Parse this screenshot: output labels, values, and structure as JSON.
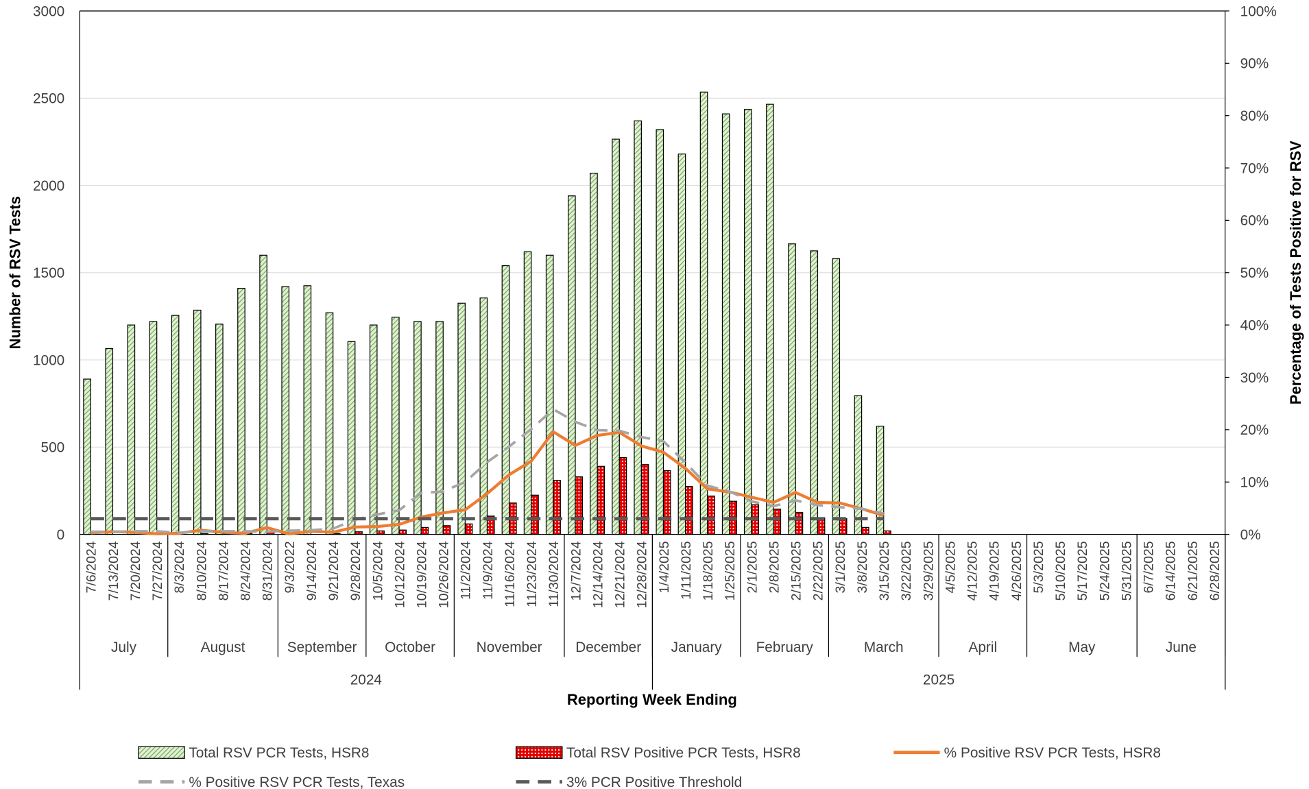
{
  "chart_data": {
    "type": "bar",
    "x_label": "Reporting Week Ending",
    "y_label": "Number of RSV Tests",
    "y2_label": "Percentage of Tests Positive for RSV",
    "categories": [
      "7/6/2024",
      "7/13/2024",
      "7/20/2024",
      "7/27/2024",
      "8/3/2024",
      "8/10/2024",
      "8/17/2024",
      "8/24/2024",
      "8/31/2024",
      "9/3/2022",
      "9/14/2024",
      "9/21/2024",
      "9/28/2024",
      "10/5/2024",
      "10/12/2024",
      "10/19/2024",
      "10/26/2024",
      "11/2/2024",
      "11/9/2024",
      "11/16/2024",
      "11/23/2024",
      "11/30/2024",
      "12/7/2024",
      "12/14/2024",
      "12/21/2024",
      "12/28/2024",
      "1/4/2025",
      "1/11/2025",
      "1/18/2025",
      "1/25/2025",
      "2/1/2025",
      "2/8/2025",
      "2/15/2025",
      "2/22/2025",
      "3/1/2025",
      "3/8/2025",
      "3/15/2025",
      "3/22/2025",
      "3/29/2025",
      "4/5/2025",
      "4/12/2025",
      "4/19/2025",
      "4/26/2025",
      "5/3/2025",
      "5/10/2025",
      "5/17/2025",
      "5/24/2025",
      "5/31/2025",
      "6/7/2025",
      "6/14/2025",
      "6/21/2025",
      "6/28/2025"
    ],
    "months": [
      "July",
      "August",
      "September",
      "October",
      "November",
      "December",
      "January",
      "February",
      "March",
      "April",
      "May",
      "June"
    ],
    "years": [
      "2024",
      "2025"
    ],
    "series": [
      {
        "name": "Total RSV PCR Tests, HSR8",
        "kind": "bar",
        "color": "#70ad47",
        "pattern": "hatch",
        "values": [
          890,
          1065,
          1200,
          1220,
          1255,
          1285,
          1205,
          1410,
          1600,
          1420,
          1425,
          1270,
          1105,
          1200,
          1245,
          1220,
          1220,
          1325,
          1355,
          1540,
          1620,
          1600,
          1940,
          2070,
          2265,
          2370,
          2320,
          2180,
          2535,
          2410,
          2435,
          2465,
          1665,
          1625,
          1580,
          795,
          620,
          null,
          null,
          null,
          null,
          null,
          null,
          null,
          null,
          null,
          null,
          null,
          null,
          null,
          null,
          null
        ]
      },
      {
        "name": "Total RSV Positive PCR Tests, HSR8",
        "kind": "bar",
        "color": "#e00000",
        "pattern": "dots",
        "values": [
          0,
          0,
          0,
          0,
          0,
          5,
          5,
          5,
          20,
          0,
          0,
          5,
          15,
          20,
          25,
          40,
          50,
          60,
          105,
          180,
          225,
          310,
          330,
          390,
          440,
          400,
          365,
          275,
          220,
          190,
          170,
          145,
          125,
          95,
          90,
          40,
          20,
          null,
          null,
          null,
          null,
          null,
          null,
          null,
          null,
          null,
          null,
          null,
          null,
          null,
          null,
          null
        ]
      },
      {
        "name": "% Positive RSV PCR Tests, HSR8",
        "kind": "line",
        "axis": "y2",
        "color": "#ed7d31",
        "line_style": "solid",
        "values": [
          0.3,
          0.5,
          0.4,
          0.1,
          0.2,
          0.8,
          0.4,
          0.2,
          1.3,
          0.1,
          0.6,
          0.4,
          1.4,
          1.5,
          1.9,
          3.3,
          4.1,
          4.7,
          7.8,
          11.4,
          14,
          19.6,
          17,
          18.9,
          19.5,
          16.9,
          15.7,
          12.6,
          8.7,
          8.1,
          7.1,
          6.1,
          8,
          6.1,
          6,
          4.9,
          3.6,
          null,
          null,
          null,
          null,
          null,
          null,
          null,
          null,
          null,
          null,
          null,
          null,
          null,
          null,
          null
        ]
      },
      {
        "name": "% Positive RSV PCR Tests, Texas",
        "kind": "line",
        "axis": "y2",
        "color": "#a5a5a5",
        "line_style": "dashed",
        "values": [
          0.5,
          0.5,
          0.6,
          0.6,
          0.3,
          0.6,
          0.6,
          0.6,
          0.5,
          0.7,
          0.8,
          1.1,
          2.8,
          3.8,
          4.6,
          7.9,
          8.2,
          10,
          13.8,
          16.8,
          20.1,
          23.9,
          21.5,
          19.9,
          19.8,
          18.6,
          17.8,
          13.7,
          9.3,
          8.2,
          6.3,
          5.4,
          6.5,
          5.6,
          5.2,
          4.9,
          4,
          null,
          null,
          null,
          null,
          null,
          null,
          null,
          null,
          null,
          null,
          null,
          null,
          null,
          null,
          null
        ]
      },
      {
        "name": "3% PCR Positive Threshold",
        "kind": "line",
        "axis": "y2",
        "color": "#595959",
        "line_style": "dashed",
        "values": [
          3,
          3,
          3,
          3,
          3,
          3,
          3,
          3,
          3,
          3,
          3,
          3,
          3,
          3,
          3,
          3,
          3,
          3,
          3,
          3,
          3,
          3,
          3,
          3,
          3,
          3,
          3,
          3,
          3,
          3,
          3,
          3,
          3,
          3,
          3,
          3,
          3,
          null,
          null,
          null,
          null,
          null,
          null,
          null,
          null,
          null,
          null,
          null,
          null,
          null,
          null,
          null
        ]
      }
    ],
    "ylim": [
      0,
      3000
    ],
    "yticks": [
      0,
      500,
      1000,
      1500,
      2000,
      2500,
      3000
    ],
    "y2lim": [
      0,
      100
    ],
    "y2ticks": [
      {
        "value": 0,
        "label": "0%"
      },
      {
        "value": 10,
        "label": "10%"
      },
      {
        "value": 20,
        "label": "20%"
      },
      {
        "value": 30,
        "label": "30%"
      },
      {
        "value": 40,
        "label": "40%"
      },
      {
        "value": 50,
        "label": "50%"
      },
      {
        "value": 60,
        "label": "60%"
      },
      {
        "value": 70,
        "label": "70%"
      },
      {
        "value": 80,
        "label": "80%"
      },
      {
        "value": 90,
        "label": "90%"
      },
      {
        "value": 100,
        "label": "100%"
      }
    ],
    "grid": true,
    "legend": "bottom"
  }
}
